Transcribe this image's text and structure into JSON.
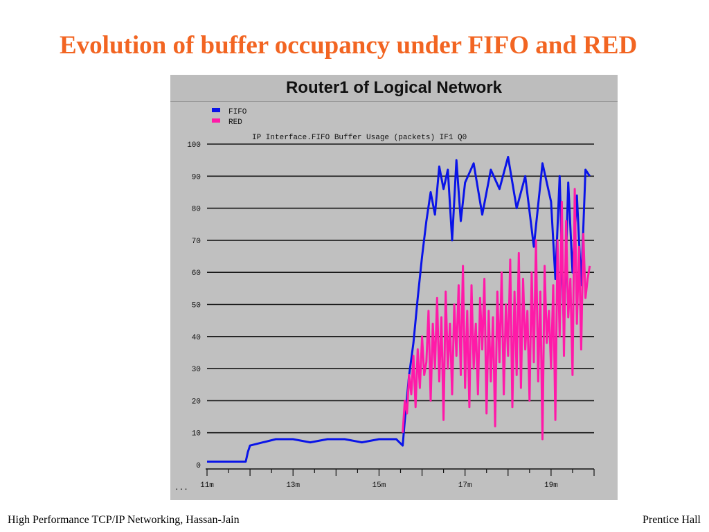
{
  "slide": {
    "title": "Evolution of buffer occupancy under FIFO and RED",
    "footer_left": "High Performance TCP/IP Networking, Hassan-Jain",
    "footer_right": "Prentice Hall"
  },
  "chart_data": {
    "type": "line",
    "title": "Router1 of Logical Network",
    "subtitle": "IP Interface.FIFO Buffer Usage (packets) IF1 Q0",
    "x_tick_labels": [
      "11m",
      "13m",
      "15m",
      "17m",
      "19m"
    ],
    "x_ticks": [
      11,
      13,
      15,
      17,
      19
    ],
    "xlim": [
      11,
      20
    ],
    "y_tick_labels": [
      "0",
      "10",
      "20",
      "30",
      "40",
      "50",
      "60",
      "70",
      "80",
      "90",
      "100"
    ],
    "y_ticks": [
      0,
      10,
      20,
      30,
      40,
      50,
      60,
      70,
      80,
      90,
      100
    ],
    "ylim": [
      0,
      100
    ],
    "grid": true,
    "legend_position": "top-left",
    "series": [
      {
        "name": "FIFO",
        "color": "#0a14e8",
        "x": [
          11.0,
          11.9,
          11.95,
          12.0,
          12.3,
          12.6,
          13.0,
          13.4,
          13.8,
          14.2,
          14.6,
          15.0,
          15.4,
          15.55,
          15.6,
          15.7,
          15.8,
          15.9,
          16.0,
          16.1,
          16.2,
          16.3,
          16.4,
          16.5,
          16.6,
          16.7,
          16.8,
          16.9,
          17.0,
          17.2,
          17.4,
          17.6,
          17.8,
          18.0,
          18.2,
          18.4,
          18.6,
          18.8,
          19.0,
          19.1,
          19.2,
          19.3,
          19.4,
          19.5,
          19.6,
          19.7,
          19.8,
          19.9
        ],
        "values": [
          1,
          1,
          4,
          6,
          7,
          8,
          8,
          7,
          8,
          8,
          7,
          8,
          8,
          6,
          14,
          28,
          38,
          52,
          65,
          76,
          85,
          78,
          93,
          86,
          92,
          70,
          95,
          76,
          88,
          94,
          78,
          92,
          86,
          96,
          80,
          90,
          68,
          94,
          82,
          58,
          90,
          42,
          88,
          60,
          84,
          56,
          92,
          90
        ]
      },
      {
        "name": "RED",
        "color": "#ff1aa8",
        "x": [
          15.55,
          15.6,
          15.65,
          15.7,
          15.75,
          15.8,
          15.85,
          15.9,
          15.95,
          16.0,
          16.05,
          16.1,
          16.15,
          16.2,
          16.25,
          16.3,
          16.35,
          16.4,
          16.45,
          16.5,
          16.55,
          16.6,
          16.65,
          16.7,
          16.75,
          16.8,
          16.85,
          16.9,
          16.95,
          17.0,
          17.05,
          17.1,
          17.15,
          17.2,
          17.25,
          17.3,
          17.35,
          17.4,
          17.45,
          17.5,
          17.55,
          17.6,
          17.65,
          17.7,
          17.75,
          17.8,
          17.85,
          17.9,
          17.95,
          18.0,
          18.05,
          18.1,
          18.15,
          18.2,
          18.25,
          18.3,
          18.35,
          18.4,
          18.45,
          18.5,
          18.55,
          18.6,
          18.65,
          18.7,
          18.75,
          18.8,
          18.85,
          18.9,
          18.95,
          19.0,
          19.05,
          19.1,
          19.15,
          19.2,
          19.25,
          19.3,
          19.35,
          19.4,
          19.45,
          19.5,
          19.55,
          19.6,
          19.65,
          19.7,
          19.75,
          19.8,
          19.85,
          19.9
        ],
        "values": [
          10,
          20,
          16,
          28,
          22,
          34,
          18,
          36,
          24,
          40,
          28,
          32,
          48,
          20,
          44,
          30,
          52,
          26,
          46,
          14,
          54,
          30,
          44,
          22,
          50,
          34,
          56,
          28,
          62,
          24,
          48,
          18,
          56,
          30,
          44,
          22,
          52,
          36,
          58,
          16,
          48,
          26,
          46,
          12,
          54,
          32,
          60,
          22,
          50,
          34,
          64,
          18,
          54,
          28,
          66,
          24,
          58,
          36,
          48,
          20,
          60,
          32,
          70,
          26,
          54,
          8,
          62,
          38,
          48,
          30,
          56,
          14,
          70,
          40,
          82,
          34,
          76,
          46,
          58,
          28,
          86,
          44,
          68,
          36,
          72,
          52,
          58,
          62
        ]
      }
    ]
  }
}
